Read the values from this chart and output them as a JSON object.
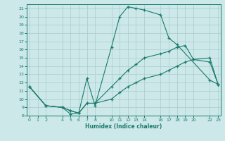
{
  "xlabel": "Humidex (Indice chaleur)",
  "background_color": "#cce8e8",
  "grid_color": "#aacccc",
  "line_color": "#1a7a6e",
  "xlim": [
    -0.3,
    23.3
  ],
  "ylim": [
    8,
    21.5
  ],
  "xticks": [
    0,
    1,
    2,
    4,
    5,
    6,
    7,
    8,
    10,
    11,
    12,
    13,
    14,
    16,
    17,
    18,
    19,
    20,
    22,
    23
  ],
  "yticks": [
    8,
    9,
    10,
    11,
    12,
    13,
    14,
    15,
    16,
    17,
    18,
    19,
    20,
    21
  ],
  "lines": [
    {
      "x": [
        0,
        2,
        4,
        5,
        6,
        7,
        8,
        10,
        11,
        12,
        13,
        14,
        16,
        17,
        18,
        22,
        23
      ],
      "y": [
        11.5,
        9.2,
        9.0,
        8.2,
        8.3,
        12.5,
        9.2,
        16.3,
        20.0,
        21.2,
        21.0,
        20.8,
        20.2,
        17.4,
        16.6,
        12.3,
        11.8
      ]
    },
    {
      "x": [
        0,
        2,
        4,
        5,
        6,
        7,
        8,
        10,
        11,
        12,
        13,
        14,
        16,
        17,
        18,
        19,
        20,
        22,
        23
      ],
      "y": [
        11.5,
        9.2,
        9.0,
        8.6,
        8.3,
        9.5,
        9.5,
        11.5,
        12.5,
        13.5,
        14.2,
        15.0,
        15.5,
        15.8,
        16.3,
        16.5,
        14.8,
        15.0,
        11.8
      ]
    },
    {
      "x": [
        0,
        2,
        4,
        5,
        6,
        7,
        8,
        10,
        11,
        12,
        13,
        14,
        16,
        17,
        18,
        19,
        20,
        22,
        23
      ],
      "y": [
        11.5,
        9.2,
        9.0,
        8.6,
        8.3,
        9.5,
        9.5,
        10.0,
        10.8,
        11.5,
        12.0,
        12.5,
        13.0,
        13.5,
        14.0,
        14.5,
        14.8,
        14.5,
        11.8
      ]
    }
  ]
}
